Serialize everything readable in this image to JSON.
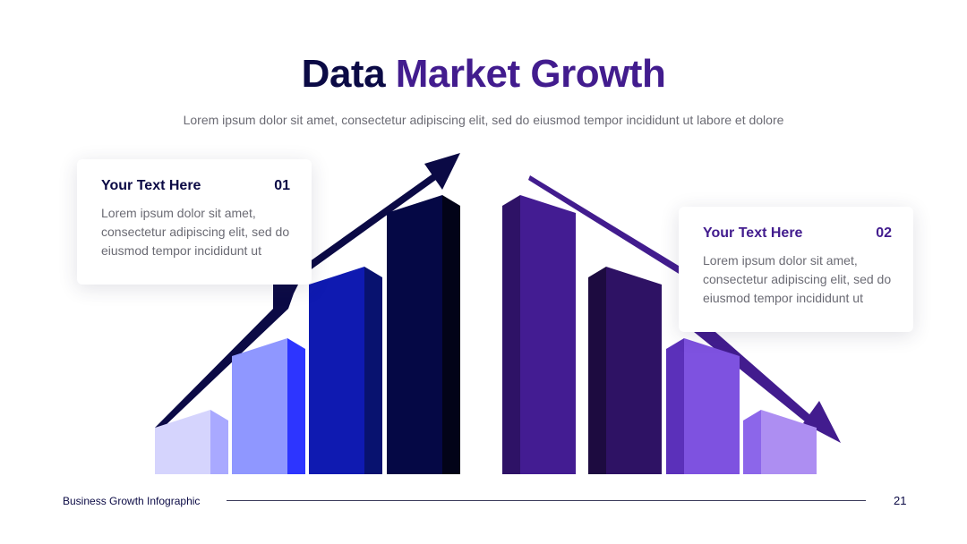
{
  "header": {
    "title_part1": "Data",
    "title_part2": "Market Growth",
    "subtitle": "Lorem ipsum dolor sit amet, consectetur adipiscing elit, sed do eiusmod tempor incididunt ut labore et dolore"
  },
  "cards": [
    {
      "title": "Your Text Here",
      "number": "01",
      "body": "Lorem ipsum dolor sit amet, consectetur adipiscing elit, sed do eiusmod tempor incididunt ut"
    },
    {
      "title": "Your Text Here",
      "number": "02",
      "body": "Lorem ipsum dolor sit amet, consectetur adipiscing elit, sed do eiusmod tempor incididunt ut"
    }
  ],
  "diagram": {
    "left_group": {
      "trend": "up",
      "bar_levels": [
        1,
        2,
        3,
        4
      ],
      "colors": [
        {
          "front": "#d5d4fd",
          "side": "#a9a9ff"
        },
        {
          "front": "#8f97ff",
          "side": "#2d35ff"
        },
        {
          "front": "#0f1ab1",
          "side": "#08126f"
        },
        {
          "front": "#050845",
          "side": "#020318"
        }
      ],
      "arrow_color": "#0b0a45"
    },
    "right_group": {
      "trend": "down",
      "bar_levels": [
        4,
        3,
        2,
        1
      ],
      "colors": [
        {
          "front": "#431c92",
          "side": "#2e1266"
        },
        {
          "front": "#2e1264",
          "side": "#1d0b40"
        },
        {
          "front": "#7e52e0",
          "side": "#5b30ba"
        },
        {
          "front": "#ad8ef2",
          "side": "#8c66ea"
        }
      ],
      "arrow_color": "#421c8e"
    }
  },
  "footer": {
    "label": "Business Growth Infographic",
    "page": "21"
  }
}
